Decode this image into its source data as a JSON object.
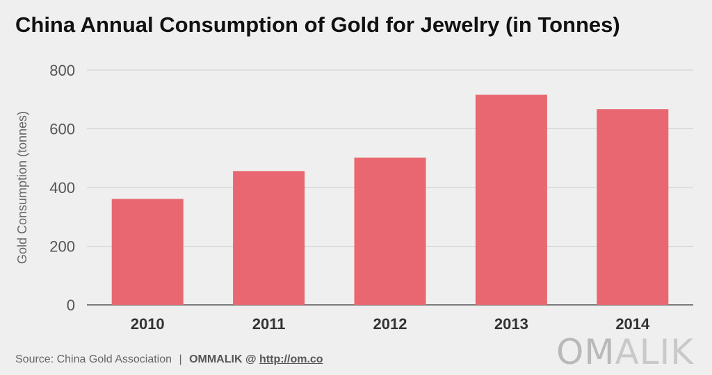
{
  "title": "China Annual Consumption of Gold for Jewelry (in Tonnes)",
  "footer": {
    "source": "Source: China Gold Association",
    "separator": "|",
    "brand": "OMMALIK @",
    "url": "http://om.co"
  },
  "logo": {
    "part1": "OM",
    "part2": "ALIK"
  },
  "colors": {
    "bar": "#e86770",
    "grid": "#cccccc",
    "axis": "#555555",
    "background": "#efefef"
  },
  "chart_data": {
    "type": "bar",
    "categories": [
      "2010",
      "2011",
      "2012",
      "2013",
      "2014"
    ],
    "values": [
      361,
      456,
      502,
      716,
      667
    ],
    "xlabel": "",
    "ylabel": "Gold Consumption (tonnes)",
    "ylim": [
      0,
      800
    ],
    "yticks": [
      "0",
      "200",
      "400",
      "600",
      "800"
    ],
    "grid": true,
    "legend": "none"
  }
}
